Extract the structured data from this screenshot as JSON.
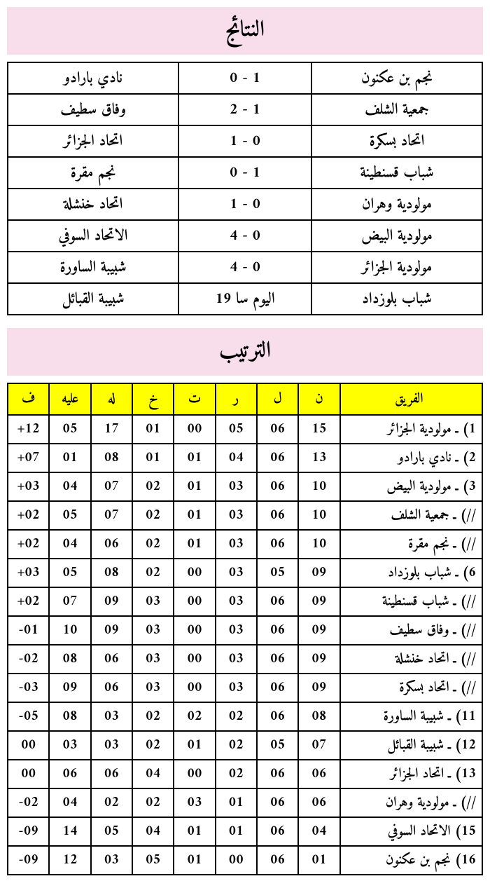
{
  "results": {
    "title": "النتائج",
    "header_bg": "#f8ddeb",
    "title_fontsize": 32,
    "border_color": "#000000",
    "cell_fontsize": 22,
    "rows": [
      {
        "home": "نجم بن عكنون",
        "score": "0 - 1",
        "away": "نادي بارادو"
      },
      {
        "home": "جمعية الشلف",
        "score": "2 - 1",
        "away": "وفاق سطيف"
      },
      {
        "home": "اتحاد بسكرة",
        "score": "1 - 0",
        "away": "اتحاد الجزائر"
      },
      {
        "home": "شباب قسنطينة",
        "score": "0 - 1",
        "away": "نجم مقرة"
      },
      {
        "home": "مولودية وهران",
        "score": "1 - 0",
        "away": "اتحاد خنشلة"
      },
      {
        "home": "مولودية البيض",
        "score": "4 - 0",
        "away": "الاتحاد السوفي"
      },
      {
        "home": "مولودية الجزائر",
        "score": "4 - 0",
        "away": "شبيبة الساورة"
      },
      {
        "home": "شباب بلوزداد",
        "score": "اليوم  سا 19",
        "away": "شبيبة القبائل"
      }
    ]
  },
  "standings": {
    "title": "الترتيب",
    "header_bg": "#f8ddeb",
    "title_fontsize": 32,
    "header_row_bg": "#ffff00",
    "border_color": "#000000",
    "cell_fontsize": 20,
    "columns": {
      "team": "الفريق",
      "n": "ن",
      "l": "ل",
      "r": "ر",
      "t": "ت",
      "kh": "خ",
      "lh": "له",
      "alyh": "عليه",
      "f": "ف"
    },
    "rows": [
      {
        "team": "1) ـ مولودية الجزائر",
        "n": "15",
        "l": "06",
        "r": "05",
        "t": "00",
        "kh": "01",
        "lh": "17",
        "alyh": "05",
        "f": "+12"
      },
      {
        "team": "2) ـ نادي بارادو",
        "n": "13",
        "l": "06",
        "r": "04",
        "t": "01",
        "kh": "01",
        "lh": "08",
        "alyh": "01",
        "f": "+07"
      },
      {
        "team": "3) ـ مولودية البيض",
        "n": "10",
        "l": "06",
        "r": "03",
        "t": "01",
        "kh": "02",
        "lh": "07",
        "alyh": "04",
        "f": "+03"
      },
      {
        "team": "//) ـ جمعية الشلف",
        "n": "10",
        "l": "06",
        "r": "03",
        "t": "01",
        "kh": "02",
        "lh": "07",
        "alyh": "05",
        "f": "+02"
      },
      {
        "team": "//) ـ نجم مقرة",
        "n": "10",
        "l": "06",
        "r": "03",
        "t": "01",
        "kh": "02",
        "lh": "06",
        "alyh": "04",
        "f": "+02"
      },
      {
        "team": "6) ـ شباب بلوزداد",
        "n": "09",
        "l": "05",
        "r": "03",
        "t": "00",
        "kh": "02",
        "lh": "08",
        "alyh": "05",
        "f": "+03"
      },
      {
        "team": "//) ـ شباب قسنطينة",
        "n": "09",
        "l": "06",
        "r": "03",
        "t": "00",
        "kh": "03",
        "lh": "09",
        "alyh": "07",
        "f": "+02"
      },
      {
        "team": "//) ـ وفاق سطيف",
        "n": "09",
        "l": "06",
        "r": "03",
        "t": "00",
        "kh": "03",
        "lh": "09",
        "alyh": "10",
        "f": "-01"
      },
      {
        "team": "//) ـ اتحاد خنشلة",
        "n": "09",
        "l": "06",
        "r": "03",
        "t": "00",
        "kh": "03",
        "lh": "06",
        "alyh": "08",
        "f": "-02"
      },
      {
        "team": "//) ـ اتحاد بسكرة",
        "n": "09",
        "l": "06",
        "r": "03",
        "t": "00",
        "kh": "03",
        "lh": "06",
        "alyh": "09",
        "f": "-03"
      },
      {
        "team": "11) ـ شبيبة الساورة",
        "n": "08",
        "l": "06",
        "r": "02",
        "t": "02",
        "kh": "02",
        "lh": "03",
        "alyh": "08",
        "f": "-05"
      },
      {
        "team": "12) ـ شبيبة القبائل",
        "n": "07",
        "l": "05",
        "r": "02",
        "t": "01",
        "kh": "02",
        "lh": "03",
        "alyh": "03",
        "f": "00"
      },
      {
        "team": "13) ـ اتحاد الجزائر",
        "n": "06",
        "l": "06",
        "r": "02",
        "t": "00",
        "kh": "04",
        "lh": "06",
        "alyh": "06",
        "f": "00"
      },
      {
        "team": "//) ـ مولودية وهران",
        "n": "06",
        "l": "06",
        "r": "01",
        "t": "03",
        "kh": "02",
        "lh": "02",
        "alyh": "04",
        "f": "-02"
      },
      {
        "team": "15) الاتحاد السوفي",
        "n": "04",
        "l": "06",
        "r": "01",
        "t": "01",
        "kh": "04",
        "lh": "05",
        "alyh": "14",
        "f": "-09"
      },
      {
        "team": "16) نجم بن عكنون",
        "n": "01",
        "l": "06",
        "r": "00",
        "t": "01",
        "kh": "05",
        "lh": "03",
        "alyh": "12",
        "f": "-09"
      }
    ]
  }
}
